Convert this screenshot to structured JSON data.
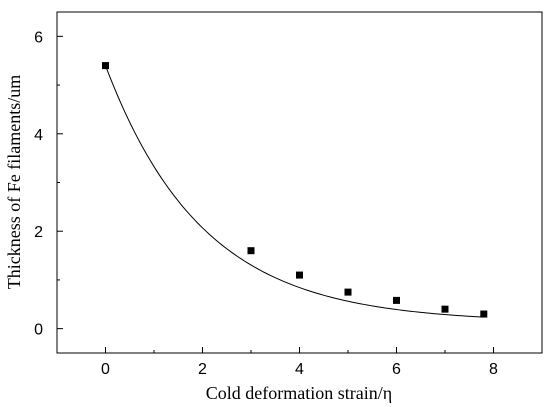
{
  "chart_data": {
    "type": "scatter",
    "title": "",
    "xlabel": "Cold deformation strain/η",
    "ylabel": "Thickness of Fe filaments/um",
    "xlim": [
      -1,
      9
    ],
    "ylim": [
      -0.5,
      6.5
    ],
    "xticks": [
      0,
      2,
      4,
      6,
      8
    ],
    "yticks": [
      0,
      2,
      4,
      6
    ],
    "grid": false,
    "legend": "none",
    "series": [
      {
        "marker": "square",
        "color": "#000000",
        "x": [
          0,
          3,
          4,
          5,
          6,
          7,
          7.8
        ],
        "y": [
          5.4,
          1.6,
          1.1,
          0.75,
          0.58,
          0.4,
          0.3
        ]
      }
    ],
    "fit_curve": {
      "type": "exponential-decay",
      "color": "#000000",
      "x_range": [
        0,
        7.8
      ],
      "y0": 0.13,
      "A": 5.27,
      "t": 2.0
    }
  }
}
